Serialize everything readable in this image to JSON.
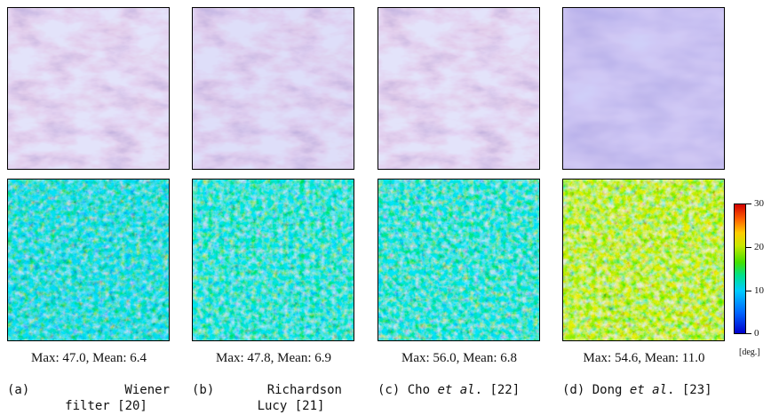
{
  "figure": {
    "columns": [
      {
        "id": "a",
        "stats": "Max: 47.0, Mean: 6.4",
        "caption_tag": "(a)",
        "caption_line1": "Wiener",
        "caption_line2": "filter [20]"
      },
      {
        "id": "b",
        "stats": "Max: 47.8, Mean: 6.9",
        "caption_tag": "(b)",
        "caption_line1": "Richardson",
        "caption_line2": "Lucy [21]"
      },
      {
        "id": "c",
        "stats": "Max: 56.0, Mean: 6.8",
        "caption_pre": "(c) Cho ",
        "caption_em": "et al",
        "caption_post": ". [22]"
      },
      {
        "id": "d",
        "stats": "Max: 54.6, Mean: 11.0",
        "caption_pre": "(d) Dong ",
        "caption_em": "et al",
        "caption_post": ". [23]"
      }
    ],
    "colorbar": {
      "ticks": [
        "30",
        "20",
        "10",
        "0"
      ],
      "unit": "[deg.]",
      "range": [
        0,
        30
      ]
    },
    "colors": {
      "normal_map_base": "#8f8fee",
      "normal_map_highlight": "#c0c8ff",
      "normal_map_shadow": "#7a52c8"
    }
  }
}
